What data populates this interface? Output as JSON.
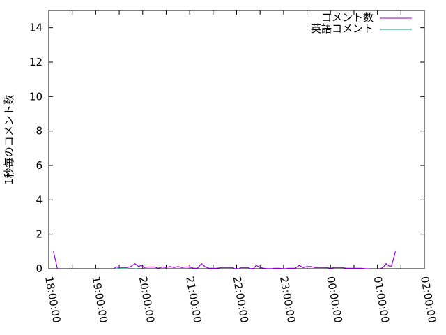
{
  "chart_data": {
    "type": "line",
    "title": "",
    "xlabel": "",
    "ylabel": "1秒毎のコメント数",
    "xlim": [
      "18:00:00",
      "02:00:00"
    ],
    "ylim": [
      0,
      15
    ],
    "x_ticks": [
      "18:00:00",
      "19:00:00",
      "20:00:00",
      "21:00:00",
      "22:00:00",
      "23:00:00",
      "00:00:00",
      "01:00:00",
      "02:00:00"
    ],
    "y_ticks": [
      0,
      2,
      4,
      6,
      8,
      10,
      12,
      14
    ],
    "grid": false,
    "legend": "top-right",
    "series": [
      {
        "name": "コメント数",
        "color": "#9400d3",
        "points": [
          [
            "18:06",
            1
          ],
          [
            "18:11",
            0
          ],
          null,
          [
            "19:23",
            0
          ],
          [
            "19:26",
            0.1
          ],
          [
            "19:30",
            0.07
          ],
          [
            "19:40",
            0.07
          ],
          [
            "19:45",
            0.13
          ],
          [
            "19:50",
            0.3
          ],
          [
            "19:55",
            0.13
          ],
          [
            "19:58",
            0.2
          ],
          [
            "20:02",
            0.07
          ],
          [
            "20:07",
            0.1
          ],
          [
            "20:15",
            0.1
          ],
          [
            "20:20",
            0.03
          ],
          [
            "20:25",
            0.1
          ],
          [
            "20:30",
            0.07
          ],
          [
            "20:35",
            0.13
          ],
          [
            "20:40",
            0.07
          ],
          [
            "20:45",
            0.13
          ],
          [
            "20:50",
            0.07
          ],
          [
            "20:55",
            0.1
          ],
          [
            "21:00",
            0.1
          ],
          [
            "21:05",
            0.03
          ],
          [
            "21:10",
            0.03
          ],
          [
            "21:15",
            0.3
          ],
          [
            "21:20",
            0.1
          ],
          [
            "21:25",
            0.03
          ],
          [
            "21:35",
            0.03
          ],
          [
            "21:40",
            0.07
          ],
          [
            "21:55",
            0.07
          ],
          [
            "21:58",
            0
          ],
          [
            "22:03",
            0
          ],
          [
            "22:05",
            0.07
          ],
          [
            "22:15",
            0.07
          ],
          [
            "22:18",
            0
          ],
          [
            "22:22",
            0.03
          ],
          [
            "22:25",
            0.2
          ],
          [
            "22:30",
            0.07
          ],
          [
            "22:35",
            0.03
          ],
          [
            "22:40",
            0
          ],
          [
            "22:45",
            0
          ],
          [
            "22:48",
            0.03
          ],
          [
            "22:55",
            0.03
          ],
          [
            "23:00",
            0
          ],
          [
            "23:03",
            0
          ],
          [
            "23:05",
            0.03
          ],
          [
            "23:15",
            0.03
          ],
          [
            "23:20",
            0.2
          ],
          [
            "23:25",
            0.07
          ],
          [
            "23:30",
            0.13
          ],
          [
            "23:35",
            0.13
          ],
          [
            "23:40",
            0.07
          ],
          [
            "23:45",
            0.07
          ],
          [
            "23:55",
            0.07
          ],
          [
            "00:00",
            0.03
          ],
          [
            "00:05",
            0.07
          ],
          [
            "00:15",
            0.07
          ],
          [
            "00:20",
            0.03
          ],
          [
            "00:30",
            0.03
          ],
          [
            "00:35",
            0.03
          ],
          [
            "00:40",
            0.03
          ],
          [
            "00:45",
            0
          ],
          [
            "00:50",
            0
          ],
          null,
          [
            "01:03",
            0
          ],
          [
            "01:07",
            0.07
          ],
          [
            "01:11",
            0.3
          ],
          [
            "01:15",
            0.15
          ],
          [
            "01:18",
            0.15
          ],
          [
            "01:23",
            1
          ]
        ]
      },
      {
        "name": "英語コメント",
        "color": "#009e73",
        "points": [
          [
            "19:23",
            0
          ],
          [
            "19:42",
            0
          ],
          null,
          [
            "19:50",
            0
          ],
          [
            "19:53",
            0
          ],
          null,
          [
            "21:58",
            0
          ],
          [
            "22:03",
            0
          ],
          null,
          [
            "22:18",
            0
          ],
          [
            "22:22",
            0
          ],
          null,
          [
            "22:40",
            0
          ],
          [
            "22:45",
            0
          ],
          null,
          [
            "23:00",
            0
          ],
          [
            "23:03",
            0
          ]
        ]
      }
    ]
  }
}
